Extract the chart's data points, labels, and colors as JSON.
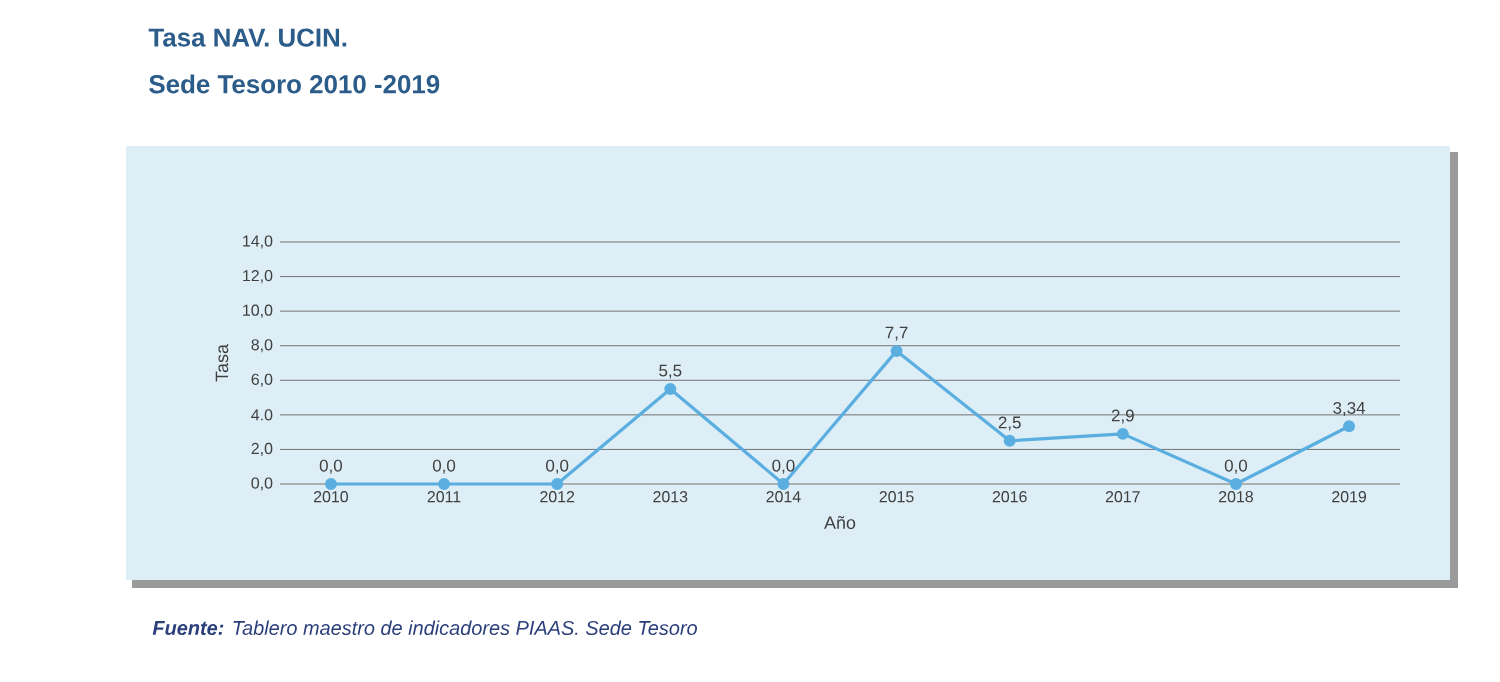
{
  "chart_data": {
    "type": "line",
    "title": "Tasa NAV. UCIN.",
    "subtitle": "Sede Tesoro 2010 -2019",
    "xlabel": "Año",
    "ylabel": "Tasa",
    "categories": [
      "2010",
      "2011",
      "2012",
      "2013",
      "2014",
      "2015",
      "2016",
      "2017",
      "2018",
      "2019"
    ],
    "series": [
      {
        "color": "#5aaee0",
        "values": [
          0,
          0,
          0,
          5.5,
          0,
          7.7,
          2.5,
          2.9,
          0,
          3.34
        ],
        "value_labels": [
          "0,0",
          "0,0",
          "0,0",
          "5,5",
          "0,0",
          "7,7",
          "2,5",
          "2,9",
          "0,0",
          "3,34"
        ]
      }
    ],
    "ylim": [
      0,
      14
    ],
    "yticks": [
      {
        "value": 0,
        "label": "0,0"
      },
      {
        "value": 2,
        "label": "2,0"
      },
      {
        "value": 4,
        "label": "4.0"
      },
      {
        "value": 6,
        "label": "6,0"
      },
      {
        "value": 8,
        "label": "8,0"
      },
      {
        "value": 10,
        "label": "10,0"
      },
      {
        "value": 12,
        "label": "12,0"
      },
      {
        "value": 14,
        "label": "14,0"
      }
    ],
    "grid": "y",
    "marker": "circle",
    "line_style": "solid",
    "annotations": [
      "**Fuente:** Tablero maestro de indicadores PIAAS. Sede Tesoro"
    ]
  }
}
